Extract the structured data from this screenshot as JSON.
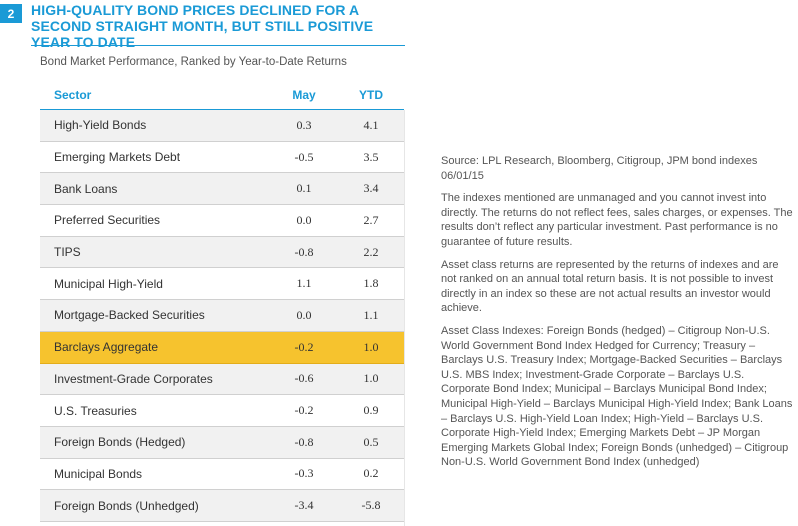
{
  "figure": {
    "number": "2",
    "title": "High-Quality Bond Prices Declined for a Second Straight Month, but Still Positive Year to Date",
    "subtitle": "Bond Market Performance, Ranked by Year-to-Date Returns"
  },
  "table": {
    "headers": {
      "sector": "Sector",
      "may": "May",
      "ytd": "YTD"
    },
    "rows": [
      {
        "sector": "High-Yield Bonds",
        "may": "0.3",
        "ytd": "4.1"
      },
      {
        "sector": "Emerging Markets Debt",
        "may": "-0.5",
        "ytd": "3.5"
      },
      {
        "sector": "Bank Loans",
        "may": "0.1",
        "ytd": "3.4"
      },
      {
        "sector": "Preferred Securities",
        "may": "0.0",
        "ytd": "2.7"
      },
      {
        "sector": "TIPS",
        "may": "-0.8",
        "ytd": "2.2"
      },
      {
        "sector": "Municipal High-Yield",
        "may": "1.1",
        "ytd": "1.8"
      },
      {
        "sector": "Mortgage-Backed Securities",
        "may": "0.0",
        "ytd": "1.1"
      },
      {
        "sector": "Barclays Aggregate",
        "may": "-0.2",
        "ytd": "1.0"
      },
      {
        "sector": "Investment-Grade Corporates",
        "may": "-0.6",
        "ytd": "1.0"
      },
      {
        "sector": "U.S. Treasuries",
        "may": "-0.2",
        "ytd": "0.9"
      },
      {
        "sector": "Foreign Bonds (Hedged)",
        "may": "-0.8",
        "ytd": "0.5"
      },
      {
        "sector": "Municipal Bonds",
        "may": "-0.3",
        "ytd": "0.2"
      },
      {
        "sector": "Foreign Bonds (Unhedged)",
        "may": "-3.4",
        "ytd": "-5.8"
      }
    ]
  },
  "notes": {
    "source": "Source: LPL Research, Bloomberg, Citigroup, JPM bond indexes 06/01/15",
    "disclaimer1": "The indexes mentioned are unmanaged and you cannot invest into directly. The returns do not reflect fees, sales charges, or expenses. The results don’t reflect any particular investment. Past performance is no guarantee of future results.",
    "disclaimer2": "Asset class returns are represented by the returns of indexes and are not ranked on an annual total return basis. It is not possible to invest directly in an index so these are not actual results an investor would achieve.",
    "indexes": "Asset Class Indexes: Foreign Bonds (hedged) – Citigroup Non-U.S. World Government Bond Index Hedged for Currency; Treasury – Barclays U.S. Treasury Index; Mortgage-Backed Securities – Barclays U.S. MBS Index; Investment-Grade Corporate – Barclays U.S. Corporate Bond Index; Municipal – Barclays Municipal Bond Index; Municipal High-Yield – Barclays Municipal High-Yield Index; Bank Loans – Barclays U.S. High-Yield Loan Index; High-Yield – Barclays U.S. Corporate High-Yield Index; Emerging Markets Debt – JP Morgan Emerging Markets Global Index; Foreign Bonds (unhedged) – Citigroup Non-U.S. World Government Bond Index (unhedged)"
  },
  "colors": {
    "accent": "#1a9ad6",
    "highlight": "#f6c32e"
  }
}
